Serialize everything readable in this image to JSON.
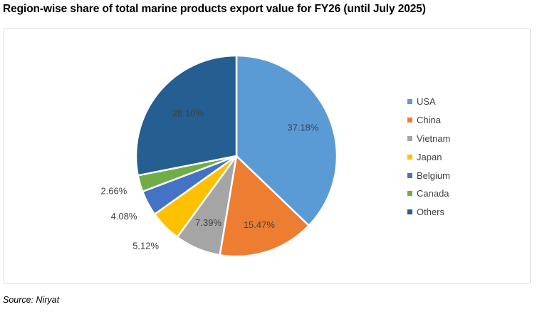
{
  "chart_data": {
    "type": "pie",
    "title": "Region-wise share of total marine products export value for FY26 (until July 2025)",
    "categories": [
      "USA",
      "China",
      "Vietnam",
      "Japan",
      "Belgium",
      "Canada",
      "Others"
    ],
    "values": [
      37.18,
      15.47,
      7.39,
      5.12,
      4.08,
      2.66,
      28.1
    ],
    "labels": [
      "37.18%",
      "15.47%",
      "7.39%",
      "5.12%",
      "4.08%",
      "2.66%",
      "28.10%"
    ],
    "colors": [
      "#5b9bd5",
      "#ed7d31",
      "#a5a5a5",
      "#ffc000",
      "#4472c4",
      "#70ad47",
      "#255e91"
    ],
    "unit": "%",
    "start_angle": "12 o'clock, clockwise",
    "legend_position": "right"
  },
  "source": "Source: Niryat"
}
